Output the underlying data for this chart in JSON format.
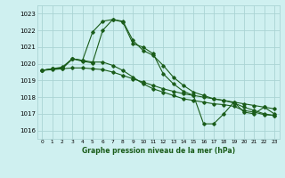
{
  "title": "Graphe pression niveau de la mer (hPa)",
  "bg_color": "#cff0f0",
  "grid_color": "#aad4d4",
  "line_color": "#1a5c1a",
  "xlim": [
    -0.5,
    23.5
  ],
  "ylim": [
    1015.5,
    1023.5
  ],
  "yticks": [
    1016,
    1017,
    1018,
    1019,
    1020,
    1021,
    1022,
    1023
  ],
  "xticks": [
    0,
    1,
    2,
    3,
    4,
    5,
    6,
    7,
    8,
    9,
    10,
    11,
    12,
    13,
    14,
    15,
    16,
    17,
    18,
    19,
    20,
    21,
    22,
    23
  ],
  "series": [
    {
      "x": [
        0,
        1,
        2,
        3,
        4,
        5,
        6,
        7,
        8,
        9,
        10,
        11,
        12,
        13,
        14,
        15,
        16,
        17,
        18,
        19,
        20,
        21,
        22,
        23
      ],
      "y": [
        1019.6,
        1019.65,
        1019.7,
        1019.75,
        1019.75,
        1019.7,
        1019.65,
        1019.5,
        1019.3,
        1019.1,
        1018.9,
        1018.7,
        1018.5,
        1018.35,
        1018.2,
        1018.1,
        1018.0,
        1017.9,
        1017.8,
        1017.7,
        1017.6,
        1017.5,
        1017.4,
        1017.3
      ]
    },
    {
      "x": [
        0,
        1,
        2,
        3,
        4,
        5,
        6,
        7,
        8,
        9,
        10,
        11,
        12,
        13,
        14,
        15,
        16,
        17,
        18,
        19,
        20,
        21,
        22,
        23
      ],
      "y": [
        1019.6,
        1019.7,
        1019.8,
        1020.3,
        1020.2,
        1021.9,
        1022.55,
        1022.65,
        1022.55,
        1021.4,
        1020.8,
        1020.5,
        1019.9,
        1019.2,
        1018.7,
        1018.3,
        1018.1,
        1017.9,
        1017.8,
        1017.65,
        1017.4,
        1017.2,
        1017.0,
        1016.9
      ]
    },
    {
      "x": [
        0,
        1,
        2,
        3,
        4,
        5,
        6,
        7,
        8,
        9,
        10,
        11,
        12,
        13,
        14,
        15,
        16,
        17,
        18,
        19,
        20,
        21,
        22,
        23
      ],
      "y": [
        1019.6,
        1019.7,
        1019.7,
        1020.3,
        1020.15,
        1020.05,
        1022.0,
        1022.65,
        1022.5,
        1021.2,
        1021.0,
        1020.6,
        1019.4,
        1018.8,
        1018.35,
        1018.1,
        1016.4,
        1016.4,
        1017.0,
        1017.7,
        1017.1,
        1017.0,
        1017.4,
        1017.0
      ]
    },
    {
      "x": [
        0,
        1,
        2,
        3,
        4,
        5,
        6,
        7,
        8,
        9,
        10,
        11,
        12,
        13,
        14,
        15,
        16,
        17,
        18,
        19,
        20,
        21,
        22,
        23
      ],
      "y": [
        1019.6,
        1019.7,
        1019.75,
        1020.3,
        1020.2,
        1020.1,
        1020.1,
        1019.9,
        1019.6,
        1019.2,
        1018.8,
        1018.5,
        1018.3,
        1018.1,
        1017.9,
        1017.8,
        1017.7,
        1017.6,
        1017.55,
        1017.45,
        1017.2,
        1017.1,
        1016.95,
        1016.9
      ]
    }
  ]
}
